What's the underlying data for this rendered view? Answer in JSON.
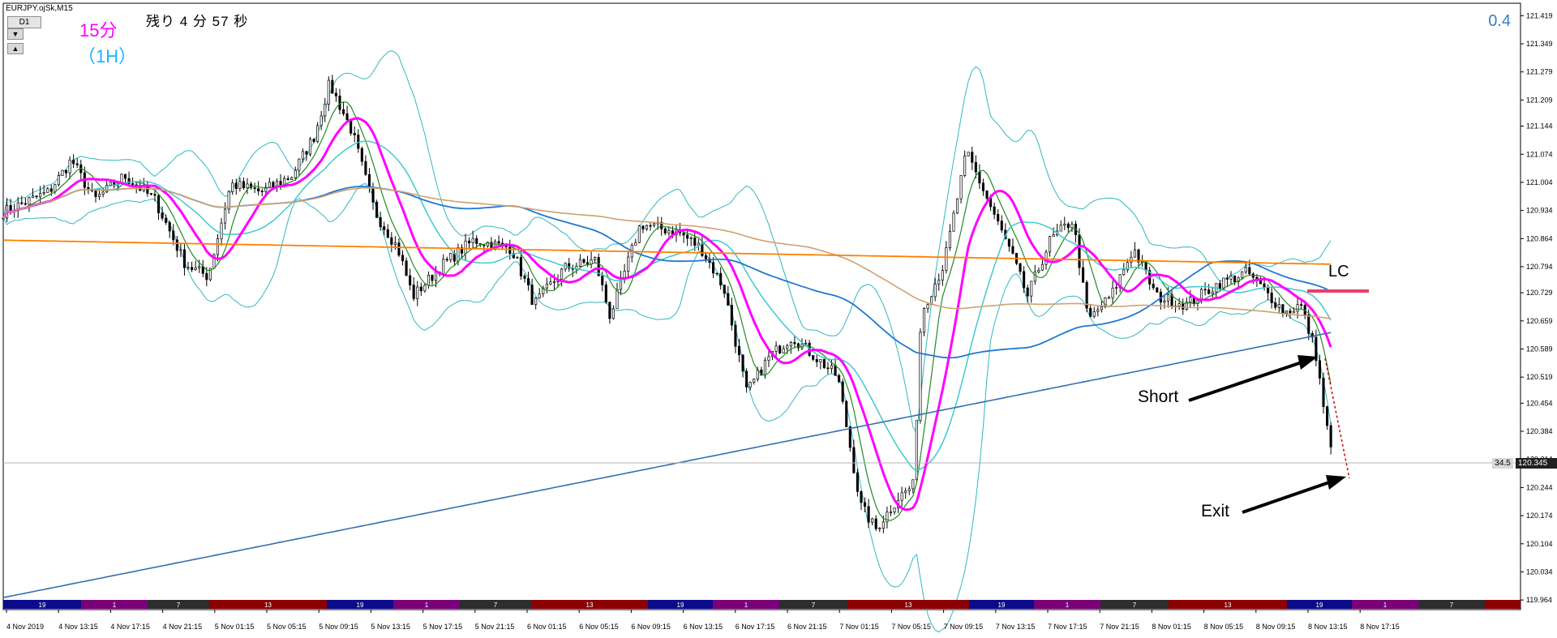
{
  "window": {
    "title": "EURJPY.ojSk,M15"
  },
  "toolbar": {
    "tf_button_label": "D1",
    "arrow_down": "▼",
    "arrow_up": "▲"
  },
  "labels": {
    "tf_15": "15分",
    "tf_1h": "（1H）",
    "countdown": "残り 4 分 57 秒",
    "corner_value": "0.4",
    "short": "Short",
    "exit": "Exit",
    "lc": "LC",
    "bid_side": "34.5",
    "current_price": "120.345"
  },
  "colors": {
    "ma_fast": "#228b22",
    "ma_magenta": "#ff00ff",
    "ma_cyan": "#40c8d0",
    "ma_blue": "#1e78d2",
    "ma_orange": "#ff8000",
    "ma_tan": "#d2a070",
    "ma_long": "#2f6fb0",
    "bollinger": "#30b8c0",
    "candles": "#000000",
    "lc_marker": "#e8406a"
  },
  "chart_data": {
    "type": "candlestick",
    "symbol": "EURJPY",
    "timeframe": "M15",
    "ylim": [
      119.94,
      121.45
    ],
    "y_ticks": [
      "121.419",
      "121.349",
      "121.279",
      "121.209",
      "121.144",
      "121.074",
      "121.004",
      "120.934",
      "120.864",
      "120.794",
      "120.729",
      "120.659",
      "120.589",
      "120.519",
      "120.454",
      "120.384",
      "120.314",
      "120.244",
      "120.174",
      "120.104",
      "120.034",
      "119.964"
    ],
    "x_ticks": [
      "4 Nov 2019",
      "4 Nov 13:15",
      "4 Nov 17:15",
      "4 Nov 21:15",
      "5 Nov 01:15",
      "5 Nov 05:15",
      "5 Nov 09:15",
      "5 Nov 13:15",
      "5 Nov 17:15",
      "5 Nov 21:15",
      "6 Nov 01:15",
      "6 Nov 05:15",
      "6 Nov 09:15",
      "6 Nov 13:15",
      "6 Nov 17:15",
      "6 Nov 21:15",
      "7 Nov 01:15",
      "7 Nov 05:15",
      "7 Nov 09:15",
      "7 Nov 13:15",
      "7 Nov 17:15",
      "7 Nov 21:15",
      "8 Nov 01:15",
      "8 Nov 05:15",
      "8 Nov 09:15",
      "8 Nov 13:15",
      "8 Nov 17:15"
    ],
    "current_price": 120.345,
    "close_anchors": [
      {
        "t": 0.0,
        "v": 120.93
      },
      {
        "t": 0.03,
        "v": 120.98
      },
      {
        "t": 0.045,
        "v": 121.06
      },
      {
        "t": 0.06,
        "v": 120.96
      },
      {
        "t": 0.08,
        "v": 121.02
      },
      {
        "t": 0.1,
        "v": 120.96
      },
      {
        "t": 0.12,
        "v": 120.8
      },
      {
        "t": 0.135,
        "v": 120.77
      },
      {
        "t": 0.15,
        "v": 121.0
      },
      {
        "t": 0.17,
        "v": 120.98
      },
      {
        "t": 0.19,
        "v": 121.02
      },
      {
        "t": 0.205,
        "v": 121.12
      },
      {
        "t": 0.215,
        "v": 121.25
      },
      {
        "t": 0.23,
        "v": 121.13
      },
      {
        "t": 0.245,
        "v": 120.93
      },
      {
        "t": 0.26,
        "v": 120.84
      },
      {
        "t": 0.27,
        "v": 120.72
      },
      {
        "t": 0.29,
        "v": 120.8
      },
      {
        "t": 0.31,
        "v": 120.86
      },
      {
        "t": 0.335,
        "v": 120.84
      },
      {
        "t": 0.35,
        "v": 120.7
      },
      {
        "t": 0.37,
        "v": 120.79
      },
      {
        "t": 0.39,
        "v": 120.81
      },
      {
        "t": 0.4,
        "v": 120.67
      },
      {
        "t": 0.42,
        "v": 120.9
      },
      {
        "t": 0.445,
        "v": 120.88
      },
      {
        "t": 0.46,
        "v": 120.84
      },
      {
        "t": 0.475,
        "v": 120.74
      },
      {
        "t": 0.49,
        "v": 120.48
      },
      {
        "t": 0.505,
        "v": 120.57
      },
      {
        "t": 0.52,
        "v": 120.62
      },
      {
        "t": 0.535,
        "v": 120.57
      },
      {
        "t": 0.55,
        "v": 120.52
      },
      {
        "t": 0.565,
        "v": 120.2
      },
      {
        "t": 0.575,
        "v": 120.14
      },
      {
        "t": 0.59,
        "v": 120.22
      },
      {
        "t": 0.6,
        "v": 120.25
      },
      {
        "t": 0.605,
        "v": 120.68
      },
      {
        "t": 0.62,
        "v": 120.8
      },
      {
        "t": 0.635,
        "v": 121.08
      },
      {
        "t": 0.65,
        "v": 120.95
      },
      {
        "t": 0.665,
        "v": 120.82
      },
      {
        "t": 0.675,
        "v": 120.72
      },
      {
        "t": 0.69,
        "v": 120.86
      },
      {
        "t": 0.705,
        "v": 120.91
      },
      {
        "t": 0.715,
        "v": 120.66
      },
      {
        "t": 0.73,
        "v": 120.72
      },
      {
        "t": 0.745,
        "v": 120.84
      },
      {
        "t": 0.76,
        "v": 120.72
      },
      {
        "t": 0.78,
        "v": 120.7
      },
      {
        "t": 0.8,
        "v": 120.75
      },
      {
        "t": 0.82,
        "v": 120.78
      },
      {
        "t": 0.835,
        "v": 120.72
      },
      {
        "t": 0.845,
        "v": 120.68
      },
      {
        "t": 0.855,
        "v": 120.7
      },
      {
        "t": 0.865,
        "v": 120.58
      },
      {
        "t": 0.872,
        "v": 120.4
      },
      {
        "t": 0.875,
        "v": 120.345
      }
    ],
    "annotations": [
      {
        "text": "Short",
        "price": 120.62
      },
      {
        "text": "Exit",
        "price": 120.345
      },
      {
        "text": "LC",
        "price": 120.77
      }
    ]
  }
}
